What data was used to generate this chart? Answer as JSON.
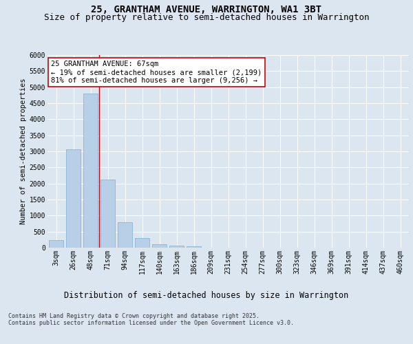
{
  "title": "25, GRANTHAM AVENUE, WARRINGTON, WA1 3BT",
  "subtitle": "Size of property relative to semi-detached houses in Warrington",
  "xlabel": "Distribution of semi-detached houses by size in Warrington",
  "ylabel": "Number of semi-detached properties",
  "categories": [
    "3sqm",
    "26sqm",
    "48sqm",
    "71sqm",
    "94sqm",
    "117sqm",
    "140sqm",
    "163sqm",
    "186sqm",
    "209sqm",
    "231sqm",
    "254sqm",
    "277sqm",
    "300sqm",
    "323sqm",
    "346sqm",
    "369sqm",
    "391sqm",
    "414sqm",
    "437sqm",
    "460sqm"
  ],
  "values": [
    230,
    3060,
    4800,
    2130,
    790,
    305,
    115,
    70,
    40,
    0,
    0,
    0,
    0,
    0,
    0,
    0,
    0,
    0,
    0,
    0,
    0
  ],
  "bar_color": "#b8cfe8",
  "bar_edge_color": "#7aadd4",
  "vline_color": "#cc0000",
  "annotation_text": "25 GRANTHAM AVENUE: 67sqm\n← 19% of semi-detached houses are smaller (2,199)\n81% of semi-detached houses are larger (9,256) →",
  "annotation_box_color": "#ffffff",
  "annotation_box_edge": "#cc0000",
  "ylim": [
    0,
    6000
  ],
  "yticks": [
    0,
    500,
    1000,
    1500,
    2000,
    2500,
    3000,
    3500,
    4000,
    4500,
    5000,
    5500,
    6000
  ],
  "background_color": "#dce6f0",
  "axes_bg_color": "#dce6f0",
  "footer_text": "Contains HM Land Registry data © Crown copyright and database right 2025.\nContains public sector information licensed under the Open Government Licence v3.0.",
  "title_fontsize": 10,
  "subtitle_fontsize": 9,
  "xlabel_fontsize": 8.5,
  "ylabel_fontsize": 7.5,
  "tick_fontsize": 7,
  "annotation_fontsize": 7.5,
  "footer_fontsize": 6
}
